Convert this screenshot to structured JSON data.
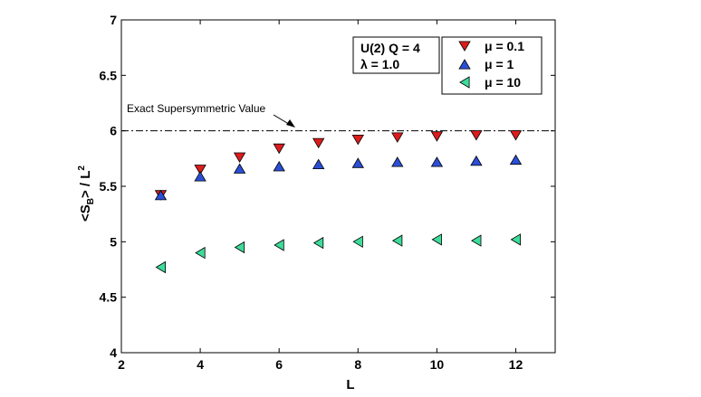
{
  "chart_data": {
    "type": "scatter",
    "title": "",
    "xlabel": "L",
    "ylabel": "<S_B> / L^2",
    "ylabel_parts": {
      "open": "<S",
      "sub": "B",
      "mid": "> / L",
      "sup": "2"
    },
    "xlim": [
      2,
      13
    ],
    "ylim": [
      4,
      7
    ],
    "xticks": [
      "2",
      "4",
      "6",
      "8",
      "10",
      "12"
    ],
    "yticks": [
      "4",
      "4.5",
      "5",
      "5.5",
      "6",
      "6.5",
      "7"
    ],
    "xtick_values": [
      2,
      4,
      6,
      8,
      10,
      12
    ],
    "ytick_values": [
      4,
      4.5,
      5,
      5.5,
      6,
      6.5,
      7
    ],
    "grid": false,
    "reference_line": {
      "y": 6.0,
      "style": "dash-dot",
      "label": "Exact Supersymmetric Value"
    },
    "info_box": {
      "line1": "U(2) Q = 4",
      "line2": "λ = 1.0"
    },
    "series": [
      {
        "name": "μ = 0.1",
        "marker": "triangle-down",
        "color": "#dd1c1c",
        "x": [
          3,
          4,
          5,
          6,
          7,
          8,
          9,
          10,
          11,
          12
        ],
        "y": [
          5.42,
          5.65,
          5.76,
          5.84,
          5.89,
          5.92,
          5.94,
          5.95,
          5.96,
          5.96
        ]
      },
      {
        "name": "μ = 1",
        "marker": "triangle-up",
        "color": "#2a4fd6",
        "x": [
          3,
          4,
          5,
          6,
          7,
          8,
          9,
          10,
          11,
          12
        ],
        "y": [
          5.42,
          5.59,
          5.66,
          5.68,
          5.7,
          5.71,
          5.72,
          5.72,
          5.73,
          5.74
        ]
      },
      {
        "name": "μ = 10",
        "marker": "triangle-left",
        "color": "#3ddc9a",
        "x": [
          3,
          4,
          5,
          6,
          7,
          8,
          9,
          10,
          11,
          12
        ],
        "y": [
          4.77,
          4.9,
          4.95,
          4.97,
          4.99,
          5.0,
          5.01,
          5.02,
          5.01,
          5.02
        ]
      }
    ],
    "legend_position": "top-right"
  }
}
